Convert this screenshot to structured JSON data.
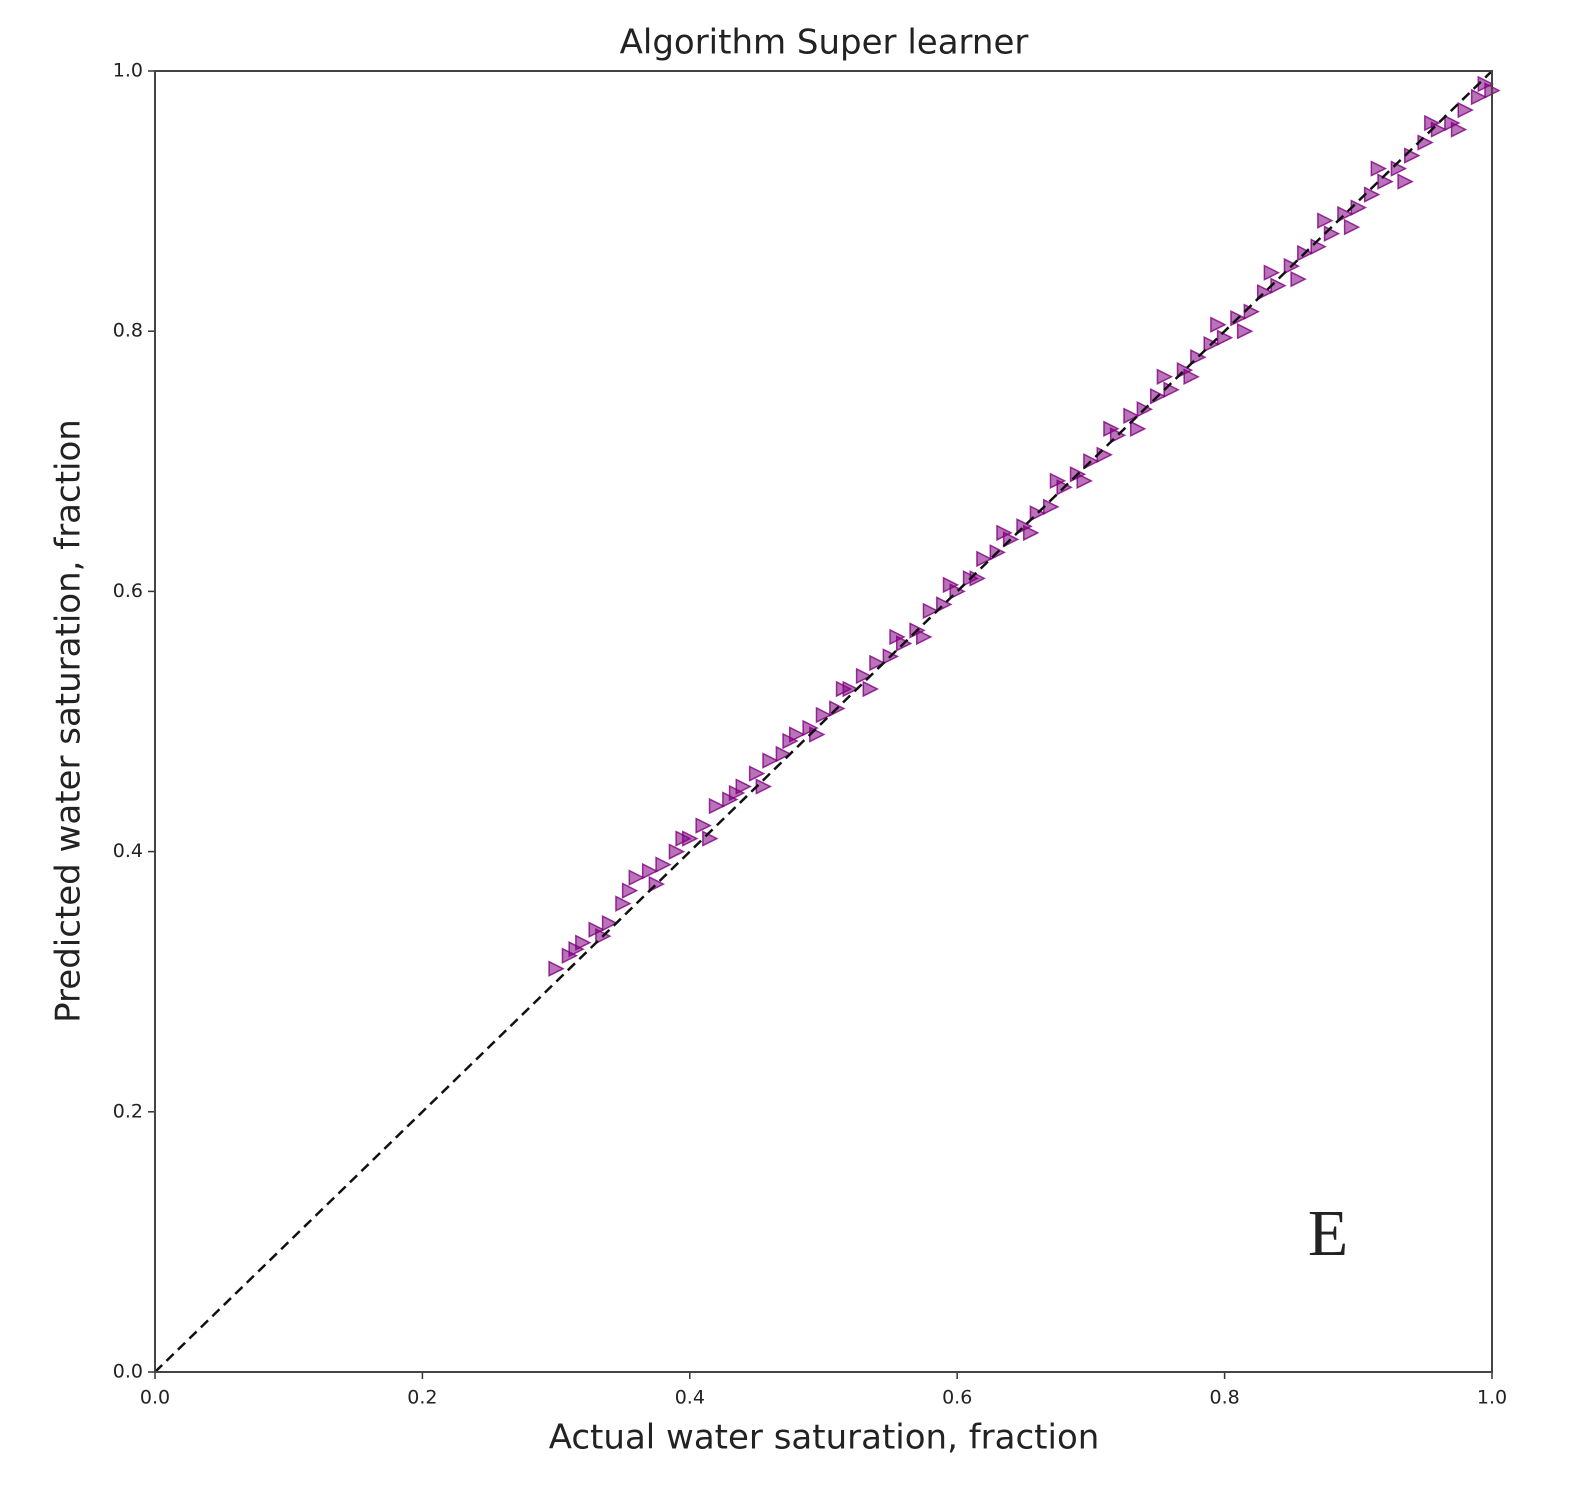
{
  "chart_data": {
    "type": "scatter",
    "title": "Algorithm Super learner",
    "xlabel": "Actual water saturation, fraction",
    "ylabel": "Predicted water saturation, fraction",
    "annotation": "E",
    "color": "#800080",
    "marker": "triangle-right",
    "xlim": [
      0,
      1
    ],
    "ylim": [
      0,
      1
    ],
    "xticks": [
      {
        "value": 0,
        "label": "0.0"
      },
      0.2,
      0.4,
      0.6,
      0.8,
      {
        "value": 1,
        "label": "1.0"
      }
    ],
    "yticks": [
      {
        "value": 0,
        "label": "0.0"
      },
      0.2,
      0.4,
      0.6,
      0.8,
      {
        "value": 1,
        "label": "1.0"
      }
    ],
    "reference_line": {
      "x": [
        0,
        1
      ],
      "y": [
        0,
        1
      ]
    },
    "x": [
      0.3,
      0.31,
      0.32,
      0.33,
      0.34,
      0.35,
      0.36,
      0.37,
      0.38,
      0.39,
      0.4,
      0.41,
      0.42,
      0.43,
      0.44,
      0.45,
      0.46,
      0.47,
      0.48,
      0.49,
      0.5,
      0.51,
      0.52,
      0.53,
      0.54,
      0.55,
      0.56,
      0.57,
      0.58,
      0.59,
      0.6,
      0.61,
      0.62,
      0.63,
      0.64,
      0.65,
      0.66,
      0.67,
      0.68,
      0.69,
      0.7,
      0.71,
      0.72,
      0.73,
      0.74,
      0.75,
      0.76,
      0.77,
      0.78,
      0.79,
      0.8,
      0.81,
      0.82,
      0.83,
      0.84,
      0.85,
      0.86,
      0.87,
      0.88,
      0.89,
      0.9,
      0.91,
      0.92,
      0.93,
      0.94,
      0.95,
      0.96,
      0.97,
      0.98,
      0.99,
      1.0,
      0.315,
      0.335,
      0.355,
      0.375,
      0.395,
      0.415,
      0.435,
      0.455,
      0.475,
      0.495,
      0.515,
      0.535,
      0.555,
      0.575,
      0.595,
      0.615,
      0.635,
      0.655,
      0.675,
      0.695,
      0.715,
      0.735,
      0.755,
      0.775,
      0.795,
      0.815,
      0.835,
      0.855,
      0.875,
      0.895,
      0.915,
      0.935,
      0.955,
      0.975,
      0.995
    ],
    "y": [
      0.31,
      0.32,
      0.33,
      0.34,
      0.345,
      0.36,
      0.38,
      0.385,
      0.39,
      0.4,
      0.41,
      0.42,
      0.435,
      0.44,
      0.45,
      0.46,
      0.47,
      0.475,
      0.49,
      0.495,
      0.505,
      0.51,
      0.525,
      0.535,
      0.545,
      0.55,
      0.56,
      0.57,
      0.585,
      0.59,
      0.6,
      0.61,
      0.625,
      0.63,
      0.64,
      0.65,
      0.66,
      0.665,
      0.68,
      0.69,
      0.7,
      0.705,
      0.72,
      0.735,
      0.74,
      0.75,
      0.755,
      0.77,
      0.78,
      0.79,
      0.795,
      0.81,
      0.815,
      0.83,
      0.835,
      0.85,
      0.86,
      0.865,
      0.875,
      0.89,
      0.895,
      0.905,
      0.915,
      0.925,
      0.935,
      0.945,
      0.955,
      0.96,
      0.97,
      0.98,
      0.985,
      0.325,
      0.335,
      0.37,
      0.375,
      0.41,
      0.41,
      0.445,
      0.45,
      0.485,
      0.49,
      0.525,
      0.525,
      0.565,
      0.565,
      0.605,
      0.61,
      0.645,
      0.645,
      0.685,
      0.685,
      0.725,
      0.725,
      0.765,
      0.765,
      0.805,
      0.8,
      0.845,
      0.84,
      0.885,
      0.88,
      0.925,
      0.915,
      0.96,
      0.955,
      0.99
    ]
  }
}
